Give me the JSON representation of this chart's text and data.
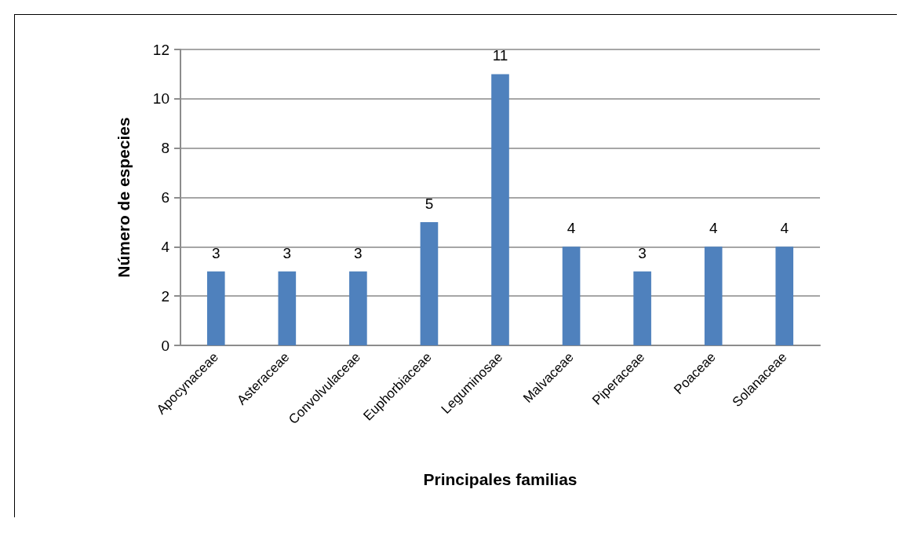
{
  "chart_data": {
    "type": "bar",
    "xlabel": "Principales familias",
    "ylabel": "Número de especies",
    "categories": [
      "Apocynaceae",
      "Asteraceae",
      "Convolvulaceae",
      "Euphorbiaceae",
      "Leguminosae",
      "Malvaceae",
      "Piperaceae",
      "Poaceae",
      "Solanaceae"
    ],
    "values": [
      3,
      3,
      3,
      5,
      11,
      4,
      3,
      4,
      4
    ],
    "color": "#4f81bd",
    "ylim": [
      0,
      12
    ],
    "yticks": [
      0,
      2,
      4,
      6,
      8,
      10,
      12
    ],
    "grid": "y",
    "data_labels": true
  }
}
